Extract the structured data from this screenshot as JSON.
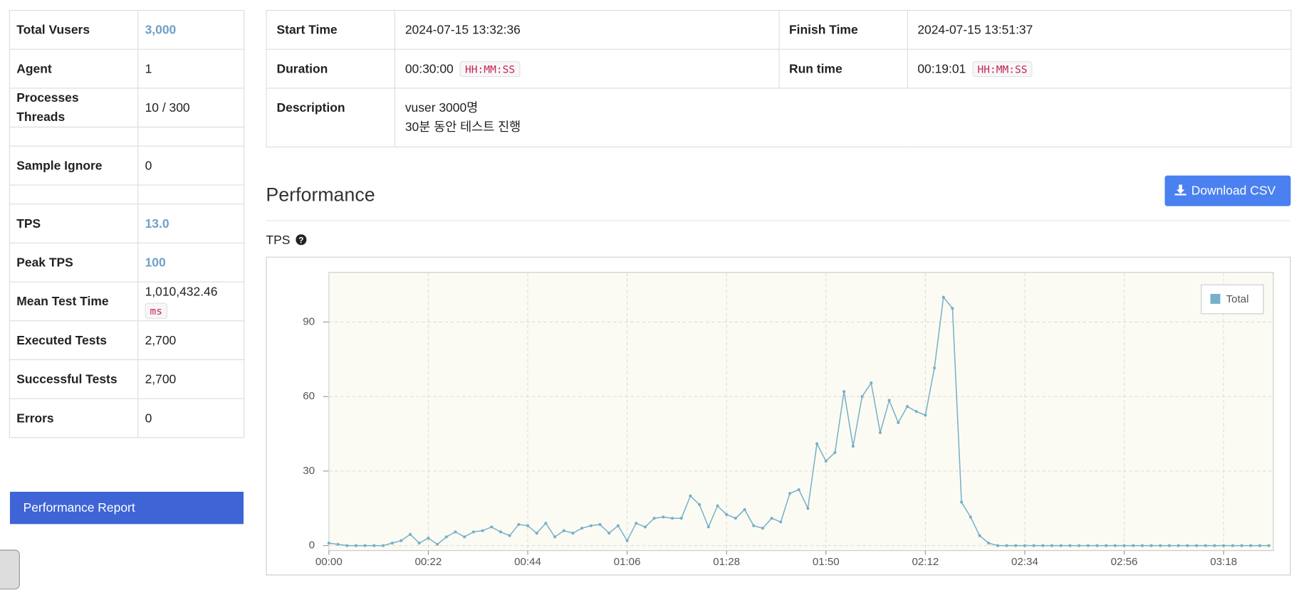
{
  "summary": {
    "rows": [
      {
        "label": "Total Vusers",
        "value": "3,000",
        "highlight": true
      },
      {
        "label": "Agent",
        "value": "1"
      },
      {
        "label": [
          "Processes",
          "Threads"
        ],
        "value": "10 / 300"
      },
      null,
      {
        "label": "Sample Ignore",
        "value": "0"
      },
      null,
      {
        "label": "TPS",
        "value": "13.0",
        "highlight": true
      },
      {
        "label": "Peak TPS",
        "value": "100",
        "highlight": true
      },
      {
        "label": "Mean Test Time",
        "value": "1,010,432.46",
        "unit": "ms"
      },
      {
        "label": "Executed Tests",
        "value": "2,700"
      },
      {
        "label": "Successful Tests",
        "value": "2,700"
      },
      {
        "label": "Errors",
        "value": "0"
      }
    ],
    "button": "Performance Report"
  },
  "info": {
    "rows": [
      [
        {
          "label": "Start Time",
          "value": "2024-07-15 13:32:36"
        },
        {
          "label": "Finish Time",
          "value": "2024-07-15 13:51:37"
        }
      ],
      [
        {
          "label": "Duration",
          "value": "00:30:00",
          "format": "HH:MM:SS"
        },
        {
          "label": "Run time",
          "value": "00:19:01",
          "format": "HH:MM:SS"
        }
      ],
      [
        {
          "label": "Description",
          "lines": [
            "vuser 3000명",
            "30분 동안 테스트 진행"
          ]
        }
      ]
    ]
  },
  "section_title": "Performance",
  "download_button": "Download CSV",
  "chart_data": {
    "type": "line",
    "title": "TPS",
    "x": [
      0,
      2,
      4,
      6,
      8,
      10,
      12,
      14,
      16,
      18,
      20,
      22,
      24,
      26,
      28,
      30,
      32,
      34,
      36,
      38,
      40,
      42,
      44,
      46,
      48,
      50,
      52,
      54,
      56,
      58,
      60,
      62,
      64,
      66,
      68,
      70,
      72,
      74,
      76,
      78,
      80,
      82,
      84,
      86,
      88,
      90,
      92,
      94,
      96,
      98,
      100,
      102,
      104,
      106,
      108,
      110,
      112,
      114,
      116,
      118,
      120,
      122,
      124,
      126,
      128,
      130,
      132,
      134,
      136,
      138,
      140,
      142,
      144,
      146,
      148,
      150,
      152,
      154,
      156,
      158,
      160,
      162,
      164,
      166,
      168,
      170,
      172,
      174,
      176,
      178,
      180,
      182,
      184,
      186,
      188,
      190,
      192,
      194,
      196,
      198,
      200,
      202,
      204,
      206,
      208
    ],
    "series": [
      {
        "name": "Total",
        "color": "#75b1c8",
        "values": [
          1,
          0.5,
          0,
          0,
          0,
          0,
          0,
          1,
          2,
          4.5,
          1,
          3,
          0.5,
          3.5,
          5.5,
          3.5,
          5.5,
          6,
          7.5,
          5.5,
          4,
          8.5,
          8,
          5,
          9,
          3.5,
          6,
          5,
          7,
          8,
          8.5,
          5,
          8,
          2,
          9,
          7.5,
          11,
          11.5,
          11,
          11,
          20,
          16.5,
          7.5,
          16,
          12.5,
          11,
          14.5,
          8,
          7,
          11,
          9.5,
          21,
          22.5,
          15,
          41,
          34,
          37.5,
          62,
          40,
          60,
          65.5,
          45.5,
          58.5,
          49.5,
          56,
          54,
          52.5,
          71.5,
          100,
          95.5,
          17.5,
          11.5,
          4,
          1,
          0,
          0,
          0,
          0,
          0,
          0,
          0,
          0,
          0,
          0,
          0,
          0,
          0,
          0,
          0,
          0,
          0,
          0,
          0,
          0,
          0,
          0,
          0,
          0,
          0,
          0,
          0,
          0,
          0,
          0,
          0
        ]
      }
    ],
    "xlim": [
      0,
      209
    ],
    "xticks": [
      {
        "value": 0,
        "label": "00:00"
      },
      {
        "value": 22,
        "label": "00:22"
      },
      {
        "value": 44,
        "label": "00:44"
      },
      {
        "value": 66,
        "label": "01:06"
      },
      {
        "value": 88,
        "label": "01:28"
      },
      {
        "value": 110,
        "label": "01:50"
      },
      {
        "value": 132,
        "label": "02:12"
      },
      {
        "value": 154,
        "label": "02:34"
      },
      {
        "value": 176,
        "label": "02:56"
      },
      {
        "value": 198,
        "label": "03:18"
      }
    ],
    "ylim": [
      -2,
      110
    ],
    "yticks": [
      0,
      30,
      60,
      90
    ],
    "grid": true,
    "legend": "upper-right"
  }
}
